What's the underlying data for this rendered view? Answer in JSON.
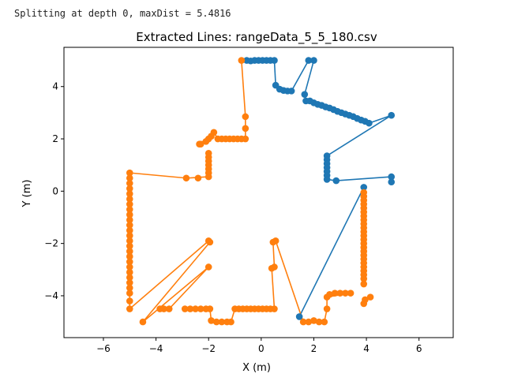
{
  "console": {
    "text": "Splitting at depth 0, maxDist = 5.4816"
  },
  "chart_data": {
    "type": "scatter",
    "title": "Extracted Lines: rangeData_5_5_180.csv",
    "xlabel": "X (m)",
    "ylabel": "Y (m)",
    "xlim": [
      -7.5,
      7.3
    ],
    "ylim": [
      -5.6,
      5.5
    ],
    "xticks": [
      -6,
      -4,
      -2,
      0,
      2,
      4,
      6
    ],
    "yticks": [
      -4,
      -2,
      0,
      2,
      4
    ],
    "grid": false,
    "colors": {
      "blue": "#1f77b4",
      "orange": "#ff7f0e"
    },
    "series": [
      {
        "color": "blue",
        "points": [
          [
            -0.55,
            5.0
          ],
          [
            -0.4,
            4.98
          ],
          [
            -0.25,
            5.0
          ],
          [
            -0.1,
            5.0
          ],
          [
            0.05,
            5.0
          ],
          [
            0.2,
            5.0
          ],
          [
            0.35,
            5.0
          ],
          [
            0.5,
            5.0
          ],
          [
            0.55,
            4.05
          ],
          [
            0.7,
            3.9
          ],
          [
            0.85,
            3.85
          ],
          [
            1.0,
            3.83
          ],
          [
            1.15,
            3.83
          ],
          [
            1.8,
            5.0
          ],
          [
            2.0,
            5.0
          ],
          [
            1.65,
            3.7
          ],
          [
            1.7,
            3.45
          ],
          [
            1.85,
            3.45
          ],
          [
            2.0,
            3.38
          ],
          [
            2.15,
            3.32
          ],
          [
            2.3,
            3.28
          ],
          [
            2.45,
            3.22
          ],
          [
            2.6,
            3.18
          ],
          [
            2.75,
            3.12
          ],
          [
            2.9,
            3.05
          ],
          [
            3.05,
            3.0
          ],
          [
            3.2,
            2.95
          ],
          [
            3.35,
            2.9
          ],
          [
            3.5,
            2.85
          ],
          [
            3.65,
            2.78
          ],
          [
            3.8,
            2.72
          ],
          [
            3.95,
            2.67
          ],
          [
            4.1,
            2.6
          ],
          [
            4.95,
            2.9
          ],
          [
            2.5,
            1.35
          ],
          [
            2.5,
            1.2
          ],
          [
            2.5,
            1.05
          ],
          [
            2.5,
            0.9
          ],
          [
            2.5,
            0.75
          ],
          [
            2.5,
            0.6
          ],
          [
            2.5,
            0.45
          ],
          [
            2.85,
            0.4
          ],
          [
            4.95,
            0.55
          ],
          [
            4.95,
            0.35
          ],
          [
            3.9,
            0.15
          ],
          [
            1.45,
            -4.8
          ]
        ],
        "lines": [
          [
            [
              -0.55,
              5.0
            ],
            [
              0.5,
              5.0
            ]
          ],
          [
            [
              0.5,
              5.0
            ],
            [
              0.55,
              4.05
            ]
          ],
          [
            [
              0.55,
              4.05
            ],
            [
              1.15,
              3.83
            ]
          ],
          [
            [
              1.15,
              3.83
            ],
            [
              1.8,
              5.0
            ]
          ],
          [
            [
              1.8,
              5.0
            ],
            [
              2.0,
              5.0
            ]
          ],
          [
            [
              2.0,
              5.0
            ],
            [
              1.65,
              3.7
            ]
          ],
          [
            [
              1.65,
              3.7
            ],
            [
              1.7,
              3.45
            ]
          ],
          [
            [
              1.7,
              3.45
            ],
            [
              4.1,
              2.6
            ]
          ],
          [
            [
              4.1,
              2.6
            ],
            [
              4.95,
              2.9
            ]
          ],
          [
            [
              4.95,
              2.9
            ],
            [
              2.5,
              1.35
            ]
          ],
          [
            [
              2.5,
              1.35
            ],
            [
              2.5,
              0.45
            ]
          ],
          [
            [
              2.5,
              0.45
            ],
            [
              2.85,
              0.4
            ]
          ],
          [
            [
              2.85,
              0.4
            ],
            [
              4.95,
              0.55
            ]
          ],
          [
            [
              4.95,
              0.55
            ],
            [
              4.95,
              0.35
            ]
          ],
          [
            [
              3.9,
              0.15
            ],
            [
              1.45,
              -4.8
            ]
          ]
        ]
      },
      {
        "color": "orange",
        "points": [
          [
            -0.75,
            5.0
          ],
          [
            -0.6,
            2.85
          ],
          [
            -0.6,
            2.4
          ],
          [
            -0.6,
            2.0
          ],
          [
            -0.75,
            2.0
          ],
          [
            -0.9,
            2.0
          ],
          [
            -1.05,
            2.0
          ],
          [
            -1.2,
            2.0
          ],
          [
            -1.35,
            2.0
          ],
          [
            -1.5,
            2.0
          ],
          [
            -1.65,
            2.0
          ],
          [
            -1.8,
            2.25
          ],
          [
            -1.9,
            2.1
          ],
          [
            -2.0,
            2.0
          ],
          [
            -2.1,
            1.9
          ],
          [
            -2.3,
            1.8
          ],
          [
            -2.35,
            1.8
          ],
          [
            -2.0,
            1.45
          ],
          [
            -2.0,
            1.3
          ],
          [
            -2.0,
            1.15
          ],
          [
            -2.0,
            1.0
          ],
          [
            -2.0,
            0.85
          ],
          [
            -2.0,
            0.7
          ],
          [
            -2.0,
            0.55
          ],
          [
            -2.4,
            0.5
          ],
          [
            -2.85,
            0.5
          ],
          [
            -5.0,
            0.7
          ],
          [
            -5.0,
            0.5
          ],
          [
            -5.0,
            0.3
          ],
          [
            -5.0,
            0.1
          ],
          [
            -5.0,
            -0.1
          ],
          [
            -5.0,
            -0.3
          ],
          [
            -5.0,
            -0.5
          ],
          [
            -5.0,
            -0.7
          ],
          [
            -5.0,
            -0.9
          ],
          [
            -5.0,
            -1.1
          ],
          [
            -5.0,
            -1.3
          ],
          [
            -5.0,
            -1.5
          ],
          [
            -5.0,
            -1.7
          ],
          [
            -5.0,
            -1.9
          ],
          [
            -5.0,
            -2.1
          ],
          [
            -5.0,
            -2.3
          ],
          [
            -5.0,
            -2.5
          ],
          [
            -5.0,
            -2.7
          ],
          [
            -5.0,
            -2.9
          ],
          [
            -5.0,
            -3.1
          ],
          [
            -5.0,
            -3.3
          ],
          [
            -5.0,
            -3.5
          ],
          [
            -5.0,
            -3.7
          ],
          [
            -5.0,
            -3.9
          ],
          [
            -5.0,
            -4.2
          ],
          [
            -5.0,
            -4.5
          ],
          [
            -2.0,
            -1.9
          ],
          [
            -1.95,
            -1.95
          ],
          [
            -4.5,
            -5.0
          ],
          [
            -2.0,
            -2.9
          ],
          [
            -3.5,
            -4.5
          ],
          [
            -3.7,
            -4.5
          ],
          [
            -3.85,
            -4.5
          ],
          [
            -2.9,
            -4.5
          ],
          [
            -2.7,
            -4.5
          ],
          [
            -2.5,
            -4.5
          ],
          [
            -2.3,
            -4.5
          ],
          [
            -2.1,
            -4.5
          ],
          [
            -1.95,
            -4.5
          ],
          [
            -1.9,
            -4.95
          ],
          [
            -1.7,
            -5.0
          ],
          [
            -1.5,
            -5.0
          ],
          [
            -1.3,
            -5.0
          ],
          [
            -1.15,
            -5.0
          ],
          [
            -1.0,
            -4.5
          ],
          [
            -0.85,
            -4.5
          ],
          [
            -0.7,
            -4.5
          ],
          [
            -0.55,
            -4.5
          ],
          [
            -0.4,
            -4.5
          ],
          [
            -0.25,
            -4.5
          ],
          [
            -0.1,
            -4.5
          ],
          [
            0.05,
            -4.5
          ],
          [
            0.2,
            -4.5
          ],
          [
            0.35,
            -4.5
          ],
          [
            0.5,
            -4.5
          ],
          [
            0.4,
            -2.95
          ],
          [
            0.5,
            -2.9
          ],
          [
            0.45,
            -1.95
          ],
          [
            0.55,
            -1.9
          ],
          [
            1.6,
            -5.0
          ],
          [
            1.8,
            -5.0
          ],
          [
            2.0,
            -4.95
          ],
          [
            2.2,
            -5.0
          ],
          [
            2.4,
            -5.0
          ],
          [
            2.5,
            -4.5
          ],
          [
            2.5,
            -4.05
          ],
          [
            2.6,
            -3.95
          ],
          [
            2.8,
            -3.9
          ],
          [
            3.0,
            -3.9
          ],
          [
            3.2,
            -3.9
          ],
          [
            3.4,
            -3.9
          ],
          [
            3.9,
            -4.3
          ],
          [
            3.95,
            -4.15
          ],
          [
            4.15,
            -4.05
          ],
          [
            3.9,
            -0.05
          ],
          [
            3.9,
            -0.2
          ],
          [
            3.9,
            -0.35
          ],
          [
            3.9,
            -0.5
          ],
          [
            3.9,
            -0.65
          ],
          [
            3.9,
            -0.8
          ],
          [
            3.9,
            -0.95
          ],
          [
            3.9,
            -1.1
          ],
          [
            3.9,
            -1.25
          ],
          [
            3.9,
            -1.4
          ],
          [
            3.9,
            -1.55
          ],
          [
            3.9,
            -1.7
          ],
          [
            3.9,
            -1.85
          ],
          [
            3.9,
            -2.0
          ],
          [
            3.9,
            -2.15
          ],
          [
            3.9,
            -2.3
          ],
          [
            3.9,
            -2.45
          ],
          [
            3.9,
            -2.6
          ],
          [
            3.9,
            -2.75
          ],
          [
            3.9,
            -2.9
          ],
          [
            3.9,
            -3.05
          ],
          [
            3.9,
            -3.2
          ],
          [
            3.9,
            -3.35
          ],
          [
            3.9,
            -3.55
          ]
        ],
        "lines": [
          [
            [
              -0.75,
              5.0
            ],
            [
              -0.6,
              2.85
            ]
          ],
          [
            [
              -0.6,
              2.85
            ],
            [
              -0.6,
              2.0
            ]
          ],
          [
            [
              -0.6,
              2.0
            ],
            [
              -1.65,
              2.0
            ]
          ],
          [
            [
              -1.65,
              2.0
            ],
            [
              -1.8,
              2.25
            ]
          ],
          [
            [
              -1.8,
              2.25
            ],
            [
              -2.35,
              1.8
            ]
          ],
          [
            [
              -2.0,
              1.45
            ],
            [
              -2.0,
              0.55
            ]
          ],
          [
            [
              -2.0,
              0.55
            ],
            [
              -2.85,
              0.5
            ]
          ],
          [
            [
              -2.85,
              0.5
            ],
            [
              -5.0,
              0.7
            ]
          ],
          [
            [
              -5.0,
              0.7
            ],
            [
              -5.0,
              -4.5
            ]
          ],
          [
            [
              -5.0,
              -4.5
            ],
            [
              -2.0,
              -1.9
            ]
          ],
          [
            [
              -2.0,
              -1.9
            ],
            [
              -1.95,
              -1.95
            ]
          ],
          [
            [
              -1.95,
              -1.95
            ],
            [
              -4.5,
              -5.0
            ]
          ],
          [
            [
              -4.5,
              -5.0
            ],
            [
              -2.0,
              -2.9
            ]
          ],
          [
            [
              -2.0,
              -2.9
            ],
            [
              -3.5,
              -4.5
            ]
          ],
          [
            [
              -3.85,
              -4.5
            ],
            [
              -3.5,
              -4.5
            ]
          ],
          [
            [
              -2.9,
              -4.5
            ],
            [
              -1.95,
              -4.5
            ]
          ],
          [
            [
              -1.95,
              -4.5
            ],
            [
              -1.9,
              -4.95
            ]
          ],
          [
            [
              -1.9,
              -4.95
            ],
            [
              -1.15,
              -5.0
            ]
          ],
          [
            [
              -1.15,
              -5.0
            ],
            [
              -1.0,
              -4.5
            ]
          ],
          [
            [
              -1.0,
              -4.5
            ],
            [
              0.5,
              -4.5
            ]
          ],
          [
            [
              0.5,
              -4.5
            ],
            [
              0.4,
              -2.95
            ]
          ],
          [
            [
              0.4,
              -2.95
            ],
            [
              0.5,
              -2.9
            ]
          ],
          [
            [
              0.5,
              -2.9
            ],
            [
              0.45,
              -1.95
            ]
          ],
          [
            [
              0.45,
              -1.95
            ],
            [
              0.55,
              -1.9
            ]
          ],
          [
            [
              0.55,
              -1.9
            ],
            [
              1.6,
              -5.0
            ]
          ],
          [
            [
              1.6,
              -5.0
            ],
            [
              2.4,
              -5.0
            ]
          ],
          [
            [
              2.4,
              -5.0
            ],
            [
              2.5,
              -4.5
            ]
          ],
          [
            [
              2.5,
              -4.5
            ],
            [
              2.5,
              -4.05
            ]
          ],
          [
            [
              2.5,
              -4.05
            ],
            [
              3.4,
              -3.9
            ]
          ],
          [
            [
              3.9,
              -4.3
            ],
            [
              4.15,
              -4.05
            ]
          ],
          [
            [
              3.9,
              -0.05
            ],
            [
              3.9,
              -3.55
            ]
          ]
        ]
      }
    ]
  }
}
